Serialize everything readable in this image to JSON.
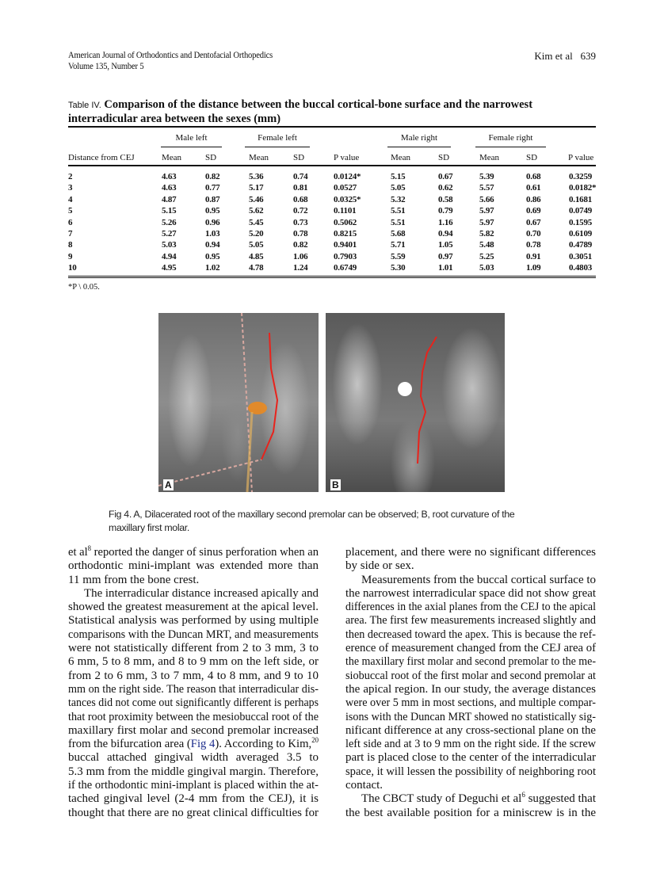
{
  "header": {
    "journal": "American Journal of Orthodontics and Dentofacial Orthopedics",
    "volume": "Volume 135, Number 5",
    "author": "Kim et al",
    "page": "639"
  },
  "table": {
    "label": "Table IV.",
    "title": "Comparison of the distance between the buccal cortical-bone surface and the narrowest interradicular area between the sexes (mm)",
    "groups": [
      "Male left",
      "Female left",
      "Male right",
      "Female right"
    ],
    "columns": [
      "Distance from CEJ",
      "Mean",
      "SD",
      "Mean",
      "SD",
      "P value",
      "Mean",
      "SD",
      "Mean",
      "SD",
      "P value"
    ],
    "rows": [
      [
        "2",
        "4.63",
        "0.82",
        "5.36",
        "0.74",
        "0.0124*",
        "5.15",
        "0.67",
        "5.39",
        "0.68",
        "0.3259"
      ],
      [
        "3",
        "4.63",
        "0.77",
        "5.17",
        "0.81",
        "0.0527",
        "5.05",
        "0.62",
        "5.57",
        "0.61",
        "0.0182*"
      ],
      [
        "4",
        "4.87",
        "0.87",
        "5.46",
        "0.68",
        "0.0325*",
        "5.32",
        "0.58",
        "5.66",
        "0.86",
        "0.1681"
      ],
      [
        "5",
        "5.15",
        "0.95",
        "5.62",
        "0.72",
        "0.1101",
        "5.51",
        "0.79",
        "5.97",
        "0.69",
        "0.0749"
      ],
      [
        "6",
        "5.26",
        "0.96",
        "5.45",
        "0.73",
        "0.5062",
        "5.51",
        "1.16",
        "5.97",
        "0.67",
        "0.1595"
      ],
      [
        "7",
        "5.27",
        "1.03",
        "5.20",
        "0.78",
        "0.8215",
        "5.68",
        "0.94",
        "5.82",
        "0.70",
        "0.6109"
      ],
      [
        "8",
        "5.03",
        "0.94",
        "5.05",
        "0.82",
        "0.9401",
        "5.71",
        "1.05",
        "5.48",
        "0.78",
        "0.4789"
      ],
      [
        "9",
        "4.94",
        "0.95",
        "4.85",
        "1.06",
        "0.7903",
        "5.59",
        "0.97",
        "5.25",
        "0.91",
        "0.3051"
      ],
      [
        "10",
        "4.95",
        "1.02",
        "4.78",
        "1.24",
        "0.6749",
        "5.30",
        "1.01",
        "5.03",
        "1.09",
        "0.4803"
      ]
    ],
    "footnote": "*P \\  0.05."
  },
  "figure": {
    "panel_a": "A",
    "panel_b": "B",
    "caption_line1": "Fig 4.  A, Dilacerated root of the maxillary second premolar can be observed; B, root curvature of the",
    "caption_line2": "maxillary first molar.",
    "colors": {
      "trace": "#e8231c",
      "marker": "#f08a1a",
      "guide": "#d8a8a0"
    }
  },
  "body": {
    "left": [
      {
        "segs": [
          {
            "t": "et al"
          },
          {
            "t": "8",
            "sup": true
          },
          {
            "t": " reported the danger of sinus perforation when an"
          }
        ]
      },
      {
        "segs": [
          {
            "t": "orthodontic mini-implant was extended more than"
          }
        ]
      },
      {
        "segs": [
          {
            "t": "11 mm from the bone crest."
          }
        ],
        "last": true
      },
      {
        "segs": [
          {
            "t": "The interradicular distance increased apically and"
          }
        ],
        "indent": true
      },
      {
        "segs": [
          {
            "t": "showed the greatest measurement at the apical level."
          }
        ]
      },
      {
        "segs": [
          {
            "t": "Statistical analysis was performed by using multiple"
          }
        ]
      },
      {
        "segs": [
          {
            "t": "comparisons with the Duncan MRT, and measurements"
          }
        ]
      },
      {
        "segs": [
          {
            "t": "were not statistically different from 2 to 3 mm, 3 to"
          }
        ]
      },
      {
        "segs": [
          {
            "t": "6 mm, 5 to 8 mm, and 8 to 9 mm on the left side, or"
          }
        ]
      },
      {
        "segs": [
          {
            "t": "from 2 to 6 mm, 3 to 7 mm, 4 to 8 mm, and 9 to 10"
          }
        ]
      },
      {
        "segs": [
          {
            "t": "mm on the right side. The reason that interradicular dis-"
          }
        ]
      },
      {
        "segs": [
          {
            "t": "tances did not come out significantly different is perhaps"
          }
        ]
      },
      {
        "segs": [
          {
            "t": "that root proximity between the mesiobuccal root of the"
          }
        ]
      },
      {
        "segs": [
          {
            "t": "maxillary first molar and second premolar increased"
          }
        ]
      },
      {
        "segs": [
          {
            "t": "from the bifurcation area ("
          },
          {
            "t": "Fig 4",
            "link": true
          },
          {
            "t": "). According to Kim,"
          },
          {
            "t": "20",
            "sup": true
          }
        ]
      },
      {
        "segs": [
          {
            "t": "buccal attached gingival width averaged 3.5 to"
          }
        ]
      },
      {
        "segs": [
          {
            "t": "5.3 mm from the middle gingival margin. Therefore,"
          }
        ]
      },
      {
        "segs": [
          {
            "t": "if the orthodontic mini-implant is placed within the at-"
          }
        ]
      },
      {
        "segs": [
          {
            "t": "tached gingival level (2-4 mm from the CEJ), it is"
          }
        ]
      },
      {
        "segs": [
          {
            "t": "thought that there are no great clinical difficulties for"
          }
        ]
      }
    ],
    "right": [
      {
        "segs": [
          {
            "t": "placement, and there were no significant differences"
          }
        ]
      },
      {
        "segs": [
          {
            "t": "by side or sex."
          }
        ],
        "last": true
      },
      {
        "segs": [
          {
            "t": "Measurements from the buccal cortical surface to"
          }
        ],
        "indent": true
      },
      {
        "segs": [
          {
            "t": "the narrowest interradicular space did not show great"
          }
        ]
      },
      {
        "segs": [
          {
            "t": "differences in the axial planes from the CEJ to the apical"
          }
        ]
      },
      {
        "segs": [
          {
            "t": "area. The first few measurements increased slightly and"
          }
        ]
      },
      {
        "segs": [
          {
            "t": "then decreased toward the apex. This is because the ref-"
          }
        ]
      },
      {
        "segs": [
          {
            "t": "erence of measurement changed from the CEJ area of"
          }
        ]
      },
      {
        "segs": [
          {
            "t": "the maxillary first molar and second premolar to the me-"
          }
        ]
      },
      {
        "segs": [
          {
            "t": "siobuccal root of the first molar and second premolar at"
          }
        ]
      },
      {
        "segs": [
          {
            "t": "the apical region. In our study, the average distances"
          }
        ]
      },
      {
        "segs": [
          {
            "t": "were over 5 mm in most sections, and multiple compar-"
          }
        ]
      },
      {
        "segs": [
          {
            "t": "isons with the Duncan MRT showed no statistically sig-"
          }
        ]
      },
      {
        "segs": [
          {
            "t": "nificant difference at any cross-sectional plane on the"
          }
        ]
      },
      {
        "segs": [
          {
            "t": "left side and at 3 to 9 mm on the right side. If the screw"
          }
        ]
      },
      {
        "segs": [
          {
            "t": "part is placed close to the center of the interradicular"
          }
        ]
      },
      {
        "segs": [
          {
            "t": "space, it will lessen the possibility of neighboring root"
          }
        ]
      },
      {
        "segs": [
          {
            "t": "contact."
          }
        ],
        "last": true
      },
      {
        "segs": [
          {
            "t": "The CBCT study of Deguchi et al"
          },
          {
            "t": "6",
            "sup": true
          },
          {
            "t": " suggested that"
          }
        ],
        "indent": true
      },
      {
        "segs": [
          {
            "t": "the best available position for a miniscrew is in the"
          }
        ]
      }
    ]
  }
}
